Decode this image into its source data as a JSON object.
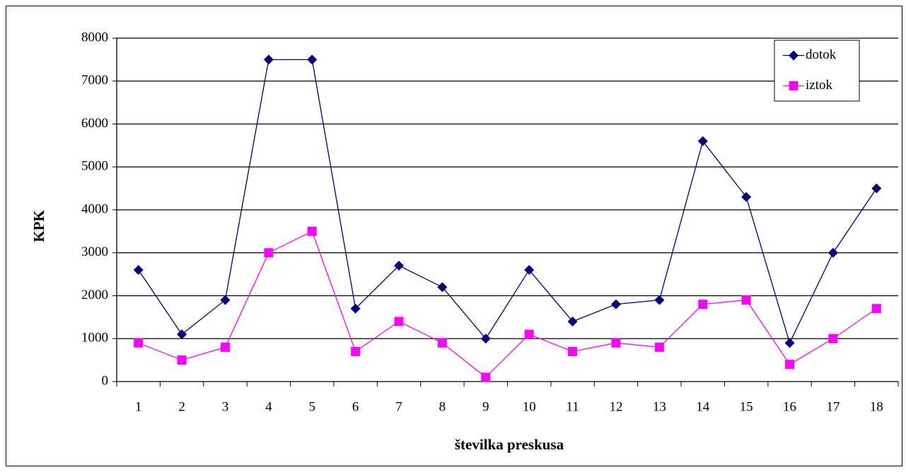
{
  "chart_data": {
    "type": "line",
    "x_label": "številka preskusa",
    "y_label": "KPK",
    "categories": [
      "1",
      "2",
      "3",
      "4",
      "5",
      "6",
      "7",
      "8",
      "9",
      "10",
      "11",
      "12",
      "13",
      "14",
      "15",
      "16",
      "17",
      "18"
    ],
    "series": [
      {
        "name": "dotok",
        "color": "#000080",
        "marker": "diamond",
        "values": [
          2600,
          1100,
          1900,
          7500,
          7500,
          1700,
          2700,
          2200,
          1000,
          2600,
          1400,
          1800,
          1900,
          5600,
          4300,
          900,
          3000,
          4500
        ]
      },
      {
        "name": "iztok",
        "color": "#ff00ff",
        "marker": "square",
        "values": [
          900,
          500,
          800,
          3000,
          3500,
          700,
          1400,
          900,
          100,
          1100,
          700,
          900,
          800,
          1800,
          1900,
          400,
          1000,
          1700
        ]
      }
    ],
    "ylim": [
      0,
      8000
    ],
    "yticks": [
      0,
      1000,
      2000,
      3000,
      4000,
      5000,
      6000,
      7000,
      8000
    ],
    "grid": true,
    "legend": "top-right"
  }
}
